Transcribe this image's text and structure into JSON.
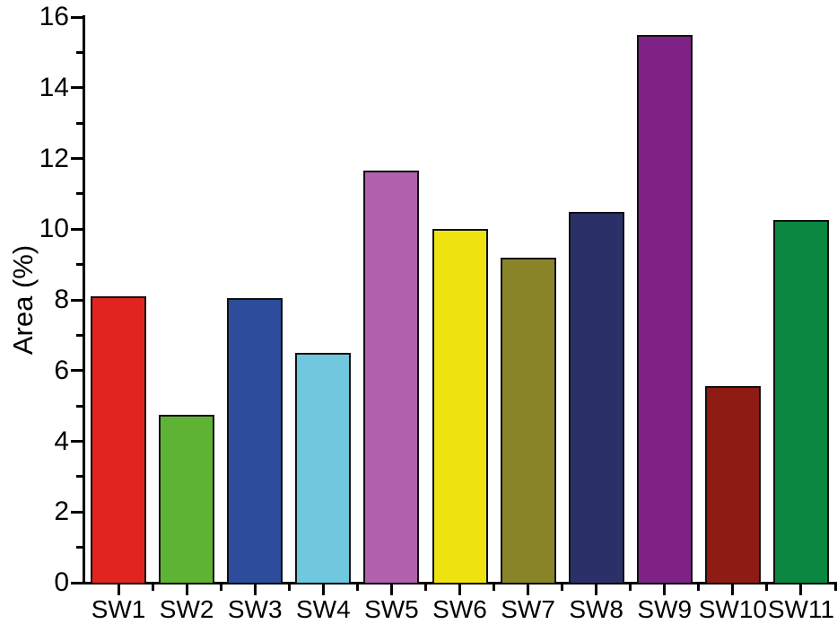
{
  "chart_data": {
    "type": "bar",
    "title": "",
    "xlabel": "",
    "ylabel": "Area (%)",
    "categories": [
      "SW1",
      "SW2",
      "SW3",
      "SW4",
      "SW5",
      "SW6",
      "SW7",
      "SW8",
      "SW9",
      "SW10",
      "SW11"
    ],
    "values": [
      8.1,
      4.75,
      8.05,
      6.5,
      11.65,
      10.0,
      9.2,
      10.5,
      15.5,
      5.55,
      10.25
    ],
    "bar_colors": [
      "#e2241f",
      "#5fb334",
      "#2d4c9c",
      "#6fc8dd",
      "#b161ad",
      "#eee30f",
      "#8a8428",
      "#2b3068",
      "#7f2288",
      "#8e1c15",
      "#0c8741"
    ],
    "bar_border_color": "#111111",
    "axis_color": "#000000",
    "background_color": "#ffffff",
    "ylim": [
      0,
      16
    ],
    "ytick_values": [
      0,
      2,
      4,
      6,
      8,
      10,
      12,
      14,
      16
    ],
    "ytick_labels": [
      "0",
      "2",
      "4",
      "6",
      "8",
      "10",
      "12",
      "14",
      "16"
    ],
    "yminor_values": [
      1,
      3,
      5,
      7,
      9,
      11,
      13,
      15
    ],
    "grid": false,
    "legend": "none"
  }
}
